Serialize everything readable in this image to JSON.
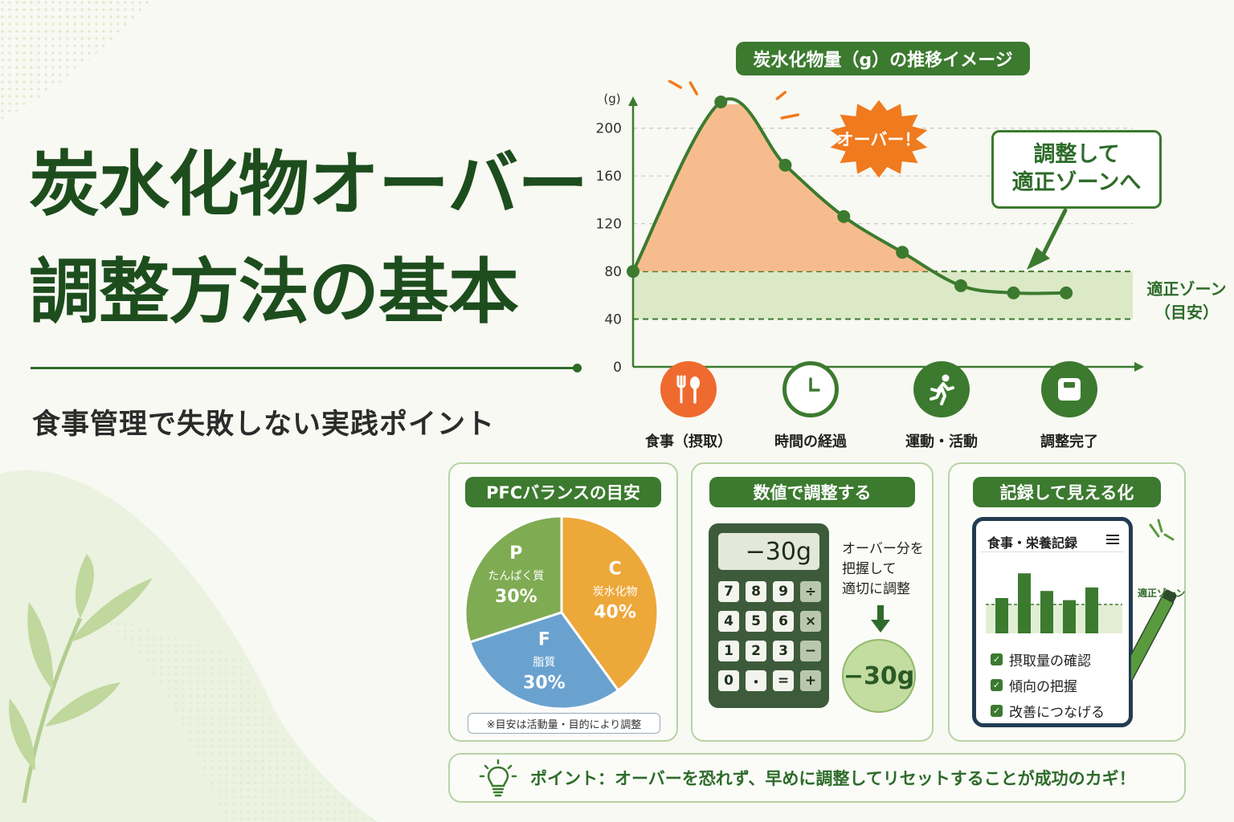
{
  "title": {
    "line1": "炭水化物オーバー",
    "line2": "調整方法の基本"
  },
  "subtitle": "食事管理で失敗しない実践ポイント",
  "chart_data": {
    "type": "line",
    "title": "炭水化物量（g）の推移イメージ",
    "ylabel": "(g)",
    "ylim": [
      0,
      220
    ],
    "yticks": [
      "0",
      "40",
      "80",
      "120",
      "160",
      "200"
    ],
    "xlim": [
      0,
      8.4
    ],
    "series": [
      {
        "points": [
          [
            0,
            80
          ],
          [
            1.5,
            222
          ],
          [
            2.6,
            169
          ],
          [
            3.6,
            126
          ],
          [
            4.6,
            96
          ],
          [
            5.6,
            68
          ],
          [
            6.5,
            62
          ],
          [
            7.4,
            62
          ]
        ]
      }
    ],
    "zone": {
      "from": 40,
      "to": 80,
      "label1": "適正ゾーン",
      "label2": "（目安）"
    },
    "annotations": {
      "over": "オーバー！",
      "callout1": "調整して",
      "callout2": "適正ゾーンへ"
    },
    "colors": {
      "line": "#3c7a2f",
      "area": "#f7b27a",
      "zone": "#dce9c6",
      "burst": "#f07a1e"
    }
  },
  "stages": [
    {
      "label": "食事（摂取）",
      "icon": "fork-spoon-icon",
      "color": "#ef6a2f"
    },
    {
      "label": "時間の経過",
      "icon": "clock-icon",
      "color": "#3c7a2f"
    },
    {
      "label": "運動・活動",
      "icon": "running-person-icon",
      "color": "#3c7a2f"
    },
    {
      "label": "調整完了",
      "icon": "scale-icon",
      "color": "#3c7a2f"
    }
  ],
  "pfc": {
    "header": "PFCバランスの目安",
    "slices": [
      {
        "letter": "P",
        "name": "たんぱく質",
        "pct": "30%",
        "value": 30,
        "color": "#7fab53"
      },
      {
        "letter": "C",
        "name": "炭水化物",
        "pct": "40%",
        "value": 40,
        "color": "#eda83a"
      },
      {
        "letter": "F",
        "name": "脂質",
        "pct": "30%",
        "value": 30,
        "color": "#6aa2cf"
      }
    ],
    "note": "※目安は活動量・目的により調整"
  },
  "calc": {
    "header": "数値で調整する",
    "display": "−30g",
    "keys": [
      "7",
      "8",
      "9",
      "÷",
      "4",
      "5",
      "6",
      "×",
      "1",
      "2",
      "3",
      "−",
      "0",
      "・",
      "=",
      "+"
    ],
    "note1": "オーバー分を",
    "note2": "把握して",
    "note3": "適切に調整",
    "result": "−30g"
  },
  "record": {
    "header": "記録して見える化",
    "app_title": "食事・栄養記録",
    "bars": [
      0.5,
      0.85,
      0.6,
      0.47,
      0.65
    ],
    "zone_label": "適正ゾーン",
    "checks": [
      "摂取量の確認",
      "傾向の把握",
      "改善につなげる"
    ]
  },
  "point": "ポイント：オーバーを恐れず、早めに調整してリセットすることが成功のカギ！"
}
